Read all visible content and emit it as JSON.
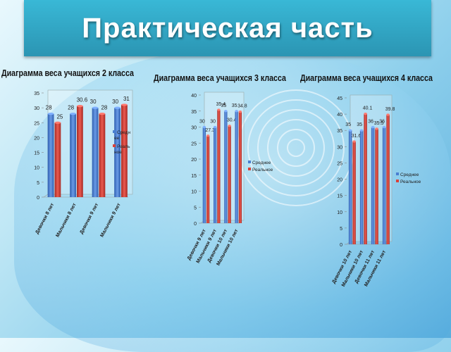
{
  "slide": {
    "title": "Практическая часть"
  },
  "colors": {
    "blue": "#4a7fd0",
    "red": "#d9423a",
    "banner": "#33a9c8"
  },
  "chart_data": [
    {
      "type": "bar",
      "title": "Диаграмма веса учащихся 2 класса",
      "categories": [
        "Девочки 8 лет",
        "Мальчики 8 лет",
        "Девочки 9 лет",
        "Мальчики 9 лет"
      ],
      "series": [
        {
          "name": "Среднее",
          "values": [
            28,
            28,
            30,
            30
          ]
        },
        {
          "name": "Реальное",
          "values": [
            25,
            30.6,
            28,
            31
          ]
        }
      ],
      "ylim": [
        0,
        35
      ],
      "ticks": [
        0,
        5,
        10,
        15,
        20,
        25,
        30,
        35
      ],
      "legend": "right"
    },
    {
      "type": "bar",
      "title": "Диаграмма веса учащихся 3 класса",
      "categories": [
        "Девочки 9 лет",
        "Мальчики 9 лет",
        "Девочки 10 лет",
        "Мальчики 10 лет"
      ],
      "series": [
        {
          "name": "Среднее",
          "values": [
            30,
            30,
            35,
            35
          ]
        },
        {
          "name": "Реальное",
          "values": [
            27.3,
            35.4,
            30.4,
            34.8
          ]
        }
      ],
      "ylim": [
        0,
        40
      ],
      "ticks": [
        0,
        5,
        10,
        15,
        20,
        25,
        30,
        35,
        40
      ],
      "legend": "right"
    },
    {
      "type": "bar",
      "title": "Диаграмма веса учащихся 4 класса",
      "categories": [
        "Девочки 10 лет",
        "Мальчики 10 лет",
        "Девочки 11 лет",
        "Мальчики 11 лет"
      ],
      "series": [
        {
          "name": "Среднее",
          "values": [
            35,
            35,
            36,
            36
          ]
        },
        {
          "name": "Реальное",
          "values": [
            31.6,
            40.1,
            35.5,
            39.8
          ]
        }
      ],
      "ylim": [
        0,
        45
      ],
      "ticks": [
        0,
        5,
        10,
        15,
        20,
        25,
        30,
        35,
        40,
        45
      ],
      "legend": "right"
    }
  ]
}
